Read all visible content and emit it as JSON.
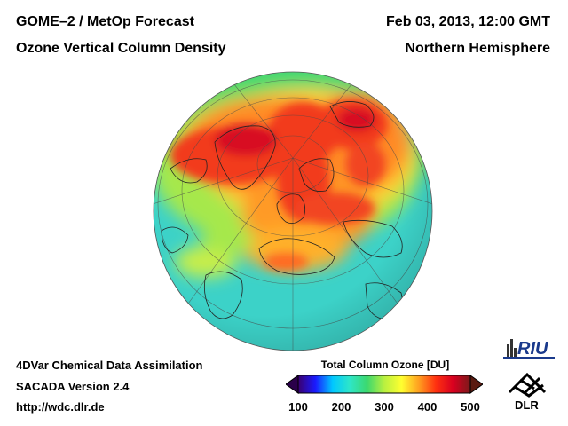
{
  "header": {
    "title_line1": "GOME–2 / MetOp Forecast",
    "title_line2": "Ozone Vertical Column Density",
    "date": "Feb 03, 2013, 12:00 GMT",
    "region": "Northern Hemisphere"
  },
  "footer": {
    "line1": "4DVar Chemical Data Assimilation",
    "line2": "SACADA Version 2.4",
    "line3": "http://wdc.dlr.de"
  },
  "legend": {
    "title": "Total Column Ozone [DU]",
    "ticks": [
      "100",
      "200",
      "300",
      "400",
      "500"
    ],
    "range": [
      100,
      500
    ],
    "colors": [
      "#3a0070",
      "#1a1aff",
      "#00c8ff",
      "#2ee6c8",
      "#3cd86e",
      "#b8f040",
      "#ffff30",
      "#ffa020",
      "#ff3010",
      "#d80020",
      "#7a1a1a"
    ]
  },
  "logos": {
    "riu": "RIU",
    "dlr": "DLR"
  }
}
